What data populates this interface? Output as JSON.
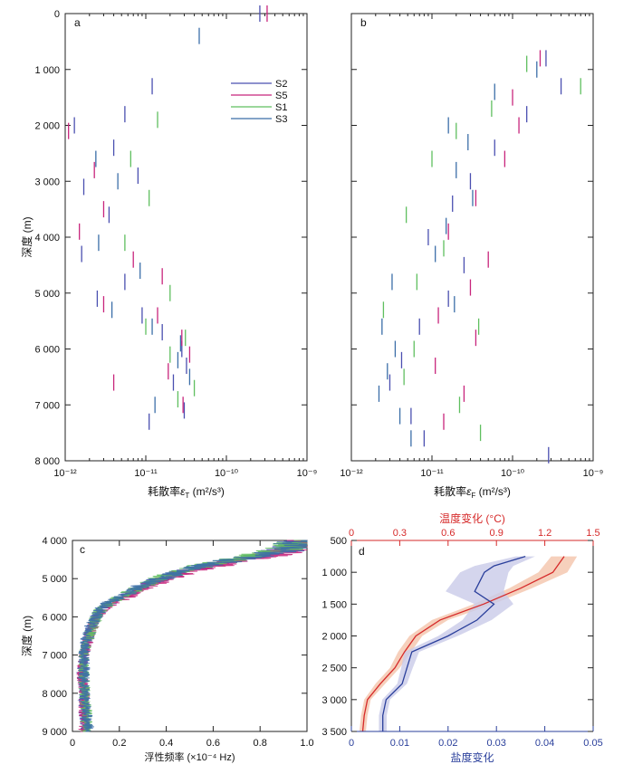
{
  "chart_data": [
    {
      "panel": "a",
      "type": "scatter",
      "xlabel_prefix": "耗散率",
      "xlabel_symbol": "ε",
      "xlabel_sub": "T",
      "xlabel_unit": " (m²/s³)",
      "ylabel": "深度 (m)",
      "xscale": "log",
      "xlim": [
        1e-12,
        1e-09
      ],
      "ylim": [
        0,
        8000
      ],
      "xticks": [
        "10⁻¹²",
        "10⁻¹¹",
        "10⁻¹⁰",
        "10⁻⁹"
      ],
      "yticks": [
        "0",
        "1 000",
        "2 000",
        "3 000",
        "4 000",
        "5 000",
        "6 000",
        "7 000",
        "8 000"
      ],
      "legend": {
        "position": "top-right",
        "entries": [
          "S2",
          "S5",
          "S1",
          "S3"
        ]
      },
      "series": [
        {
          "name": "S2",
          "color": "#4a4fb0",
          "points": [
            [
              2.6e-10,
              0
            ],
            [
              1.2e-11,
              1300
            ],
            [
              5.5e-12,
              1800
            ],
            [
              1.3e-12,
              2000
            ],
            [
              4e-12,
              2400
            ],
            [
              8e-12,
              2900
            ],
            [
              1.7e-12,
              3100
            ],
            [
              3.5e-12,
              3600
            ],
            [
              1.6e-12,
              4300
            ],
            [
              5.5e-12,
              4800
            ],
            [
              2.5e-12,
              5100
            ],
            [
              9e-12,
              5400
            ],
            [
              1.6e-11,
              5700
            ],
            [
              2.8e-11,
              6000
            ],
            [
              3.2e-11,
              6300
            ],
            [
              2.2e-11,
              6600
            ],
            [
              3e-11,
              7100
            ],
            [
              1.1e-11,
              7300
            ]
          ]
        },
        {
          "name": "S5",
          "color": "#c8257c",
          "points": [
            [
              3.2e-10,
              0
            ],
            [
              1.1e-12,
              2100
            ],
            [
              2.3e-12,
              2800
            ],
            [
              3e-12,
              3500
            ],
            [
              1.5e-12,
              3900
            ],
            [
              7e-12,
              4400
            ],
            [
              1.6e-11,
              4700
            ],
            [
              3e-12,
              5200
            ],
            [
              1.4e-11,
              5400
            ],
            [
              2.8e-11,
              5800
            ],
            [
              3.5e-11,
              6100
            ],
            [
              1.9e-11,
              6400
            ],
            [
              4e-12,
              6600
            ],
            [
              2.9e-11,
              7000
            ]
          ]
        },
        {
          "name": "S1",
          "color": "#5fbf5f",
          "points": [
            [
              1.4e-11,
              1900
            ],
            [
              6.5e-12,
              2600
            ],
            [
              1.1e-11,
              3300
            ],
            [
              5.5e-12,
              4100
            ],
            [
              2e-11,
              5000
            ],
            [
              1e-11,
              5600
            ],
            [
              3.1e-11,
              5800
            ],
            [
              2e-11,
              6100
            ],
            [
              4e-11,
              6700
            ],
            [
              2.5e-11,
              6900
            ]
          ]
        },
        {
          "name": "S3",
          "color": "#3b6ea8",
          "points": [
            [
              4.6e-11,
              400
            ],
            [
              2.4e-12,
              2600
            ],
            [
              4.5e-12,
              3000
            ],
            [
              2.6e-12,
              4100
            ],
            [
              8.5e-12,
              4600
            ],
            [
              3.8e-12,
              5300
            ],
            [
              1.2e-11,
              5600
            ],
            [
              2.7e-11,
              5900
            ],
            [
              2.5e-11,
              6200
            ],
            [
              3.5e-11,
              6500
            ],
            [
              1.3e-11,
              7000
            ]
          ]
        }
      ]
    },
    {
      "panel": "b",
      "type": "scatter",
      "xlabel_prefix": "耗散率",
      "xlabel_symbol": "ε",
      "xlabel_sub": "F",
      "xlabel_unit": " (m²/s³)",
      "xscale": "log",
      "xlim": [
        1e-12,
        1e-09
      ],
      "ylim": [
        0,
        8000
      ],
      "xticks": [
        "10⁻¹²",
        "10⁻¹¹",
        "10⁻¹⁰",
        "10⁻⁹"
      ],
      "series": [
        {
          "name": "S2",
          "color": "#4a4fb0",
          "points": [
            [
              2.6e-10,
              800
            ],
            [
              4e-10,
              1300
            ],
            [
              1.5e-10,
              1800
            ],
            [
              6e-11,
              2400
            ],
            [
              3e-11,
              3000
            ],
            [
              1.8e-11,
              3400
            ],
            [
              9e-12,
              4000
            ],
            [
              2.5e-11,
              4500
            ],
            [
              1.6e-11,
              5100
            ],
            [
              7e-12,
              5600
            ],
            [
              4.2e-12,
              6200
            ],
            [
              3e-12,
              6600
            ],
            [
              5.5e-12,
              7200
            ],
            [
              8e-12,
              7600
            ],
            [
              2.8e-10,
              7900
            ]
          ]
        },
        {
          "name": "S5",
          "color": "#c8257c",
          "points": [
            [
              2.2e-10,
              800
            ],
            [
              1e-10,
              1500
            ],
            [
              1.2e-10,
              2000
            ],
            [
              8e-11,
              2600
            ],
            [
              3.5e-11,
              3300
            ],
            [
              1.6e-11,
              3900
            ],
            [
              5e-11,
              4400
            ],
            [
              3e-11,
              4900
            ],
            [
              1.2e-11,
              5400
            ],
            [
              3.5e-11,
              5800
            ],
            [
              1.1e-11,
              6300
            ],
            [
              2.5e-11,
              6800
            ],
            [
              1.4e-11,
              7300
            ]
          ]
        },
        {
          "name": "S1",
          "color": "#5fbf5f",
          "points": [
            [
              7e-10,
              1300
            ],
            [
              1.5e-10,
              900
            ],
            [
              5.5e-11,
              1700
            ],
            [
              2e-11,
              2100
            ],
            [
              1e-11,
              2600
            ],
            [
              4.8e-12,
              3600
            ],
            [
              1.4e-11,
              4200
            ],
            [
              6.5e-12,
              4800
            ],
            [
              2.5e-12,
              5300
            ],
            [
              3.8e-11,
              5600
            ],
            [
              6e-12,
              6000
            ],
            [
              4.5e-12,
              6500
            ],
            [
              2.2e-11,
              7000
            ],
            [
              4e-11,
              7500
            ]
          ]
        },
        {
          "name": "S3",
          "color": "#3b6ea8",
          "points": [
            [
              2e-10,
              1000
            ],
            [
              6e-11,
              1400
            ],
            [
              1.6e-11,
              2000
            ],
            [
              2.8e-11,
              2300
            ],
            [
              2e-11,
              2800
            ],
            [
              3.2e-11,
              3300
            ],
            [
              1.5e-11,
              3800
            ],
            [
              1.1e-11,
              4300
            ],
            [
              3.2e-12,
              4800
            ],
            [
              1.9e-11,
              5200
            ],
            [
              2.4e-12,
              5600
            ],
            [
              3.5e-12,
              6000
            ],
            [
              2.8e-12,
              6400
            ],
            [
              2.2e-12,
              6800
            ],
            [
              4e-12,
              7200
            ],
            [
              5.5e-12,
              7600
            ]
          ]
        }
      ]
    },
    {
      "panel": "c",
      "type": "line",
      "xlabel": "浮性频率 (×10⁻⁴ Hz)",
      "ylabel": "深度 (m)",
      "xlim": [
        0,
        1.0
      ],
      "ylim": [
        4000,
        9000
      ],
      "xticks": [
        "0",
        "0.2",
        "0.4",
        "0.6",
        "0.8",
        "1.0"
      ],
      "yticks": [
        "4 000",
        "5 000",
        "6 000",
        "7 000",
        "8 000",
        "9 000"
      ],
      "series": [
        {
          "name": "S2",
          "color": "#4a4fb0",
          "profile": [
            [
              4000,
              1.0
            ],
            [
              4200,
              0.94
            ],
            [
              4400,
              0.8
            ],
            [
              4600,
              0.62
            ],
            [
              4800,
              0.48
            ],
            [
              5000,
              0.38
            ],
            [
              5200,
              0.3
            ],
            [
              5400,
              0.24
            ],
            [
              5600,
              0.17
            ],
            [
              5800,
              0.12
            ],
            [
              6000,
              0.1
            ],
            [
              6200,
              0.09
            ],
            [
              6500,
              0.07
            ],
            [
              7000,
              0.05
            ],
            [
              7500,
              0.04
            ],
            [
              8000,
              0.05
            ],
            [
              8500,
              0.05
            ],
            [
              9000,
              0.06
            ]
          ]
        },
        {
          "name": "S5",
          "color": "#c8257c",
          "profile": [
            [
              4000,
              1.0
            ],
            [
              4200,
              0.96
            ],
            [
              4400,
              0.83
            ],
            [
              4600,
              0.66
            ],
            [
              4800,
              0.5
            ],
            [
              5000,
              0.4
            ],
            [
              5200,
              0.32
            ],
            [
              5400,
              0.26
            ],
            [
              5600,
              0.19
            ],
            [
              5800,
              0.13
            ],
            [
              6000,
              0.11
            ],
            [
              6200,
              0.09
            ],
            [
              6500,
              0.07
            ],
            [
              7000,
              0.05
            ],
            [
              7500,
              0.04
            ],
            [
              8000,
              0.05
            ],
            [
              8500,
              0.05
            ],
            [
              9000,
              0.05
            ]
          ]
        },
        {
          "name": "S1",
          "color": "#5fbf5f",
          "profile": [
            [
              4000,
              0.98
            ],
            [
              4200,
              0.92
            ],
            [
              4400,
              0.78
            ],
            [
              4600,
              0.6
            ],
            [
              4800,
              0.46
            ],
            [
              5000,
              0.37
            ],
            [
              5200,
              0.3
            ],
            [
              5400,
              0.23
            ],
            [
              5600,
              0.17
            ],
            [
              5800,
              0.12
            ],
            [
              6000,
              0.1
            ],
            [
              6200,
              0.09
            ],
            [
              6500,
              0.07
            ],
            [
              7000,
              0.05
            ],
            [
              7500,
              0.05
            ],
            [
              8000,
              0.05
            ],
            [
              8500,
              0.06
            ],
            [
              9000,
              0.06
            ]
          ]
        },
        {
          "name": "S3",
          "color": "#3b6ea8",
          "profile": [
            [
              4000,
              0.99
            ],
            [
              4200,
              0.93
            ],
            [
              4400,
              0.79
            ],
            [
              4600,
              0.61
            ],
            [
              4800,
              0.47
            ],
            [
              5000,
              0.38
            ],
            [
              5200,
              0.29
            ],
            [
              5400,
              0.23
            ],
            [
              5600,
              0.16
            ],
            [
              5800,
              0.12
            ],
            [
              6000,
              0.1
            ],
            [
              6200,
              0.08
            ],
            [
              6500,
              0.06
            ],
            [
              7000,
              0.05
            ],
            [
              7500,
              0.05
            ],
            [
              8000,
              0.05
            ],
            [
              8500,
              0.06
            ],
            [
              9000,
              0.07
            ]
          ]
        }
      ]
    },
    {
      "panel": "d",
      "type": "line",
      "xlabel_top": "温度变化 (°C)",
      "xlabel_bottom": "盐度变化",
      "ylabel": "",
      "xlim_top": [
        0,
        1.5
      ],
      "xlim_bottom": [
        0,
        0.05
      ],
      "ylim": [
        500,
        3500
      ],
      "xticks_top": [
        "0",
        "0.3",
        "0.6",
        "0.9",
        "1.2",
        "1.5"
      ],
      "xticks_bottom": [
        "0",
        "0.01",
        "0.02",
        "0.03",
        "0.04",
        "0.05"
      ],
      "yticks": [
        "500",
        "1 000",
        "1 500",
        "2 000",
        "2 500",
        "3 000",
        "3 500"
      ],
      "colors": {
        "temperature": "#d62a2a",
        "salinity": "#2a3f9b",
        "temp_band": "#f5c8b0",
        "sal_band": "#c9cbe8"
      },
      "temperature": [
        [
          750,
          1.32
        ],
        [
          1000,
          1.25
        ],
        [
          1250,
          1.05
        ],
        [
          1500,
          0.82
        ],
        [
          1750,
          0.55
        ],
        [
          2000,
          0.4
        ],
        [
          2250,
          0.33
        ],
        [
          2500,
          0.27
        ],
        [
          2750,
          0.18
        ],
        [
          3000,
          0.1
        ],
        [
          3250,
          0.08
        ],
        [
          3500,
          0.07
        ]
      ],
      "temperature_band": [
        [
          750,
          0.08
        ],
        [
          1000,
          0.09
        ],
        [
          1250,
          0.07
        ],
        [
          1500,
          0.06
        ],
        [
          1750,
          0.05
        ],
        [
          2000,
          0.04
        ],
        [
          2250,
          0.04
        ],
        [
          2500,
          0.03
        ],
        [
          2750,
          0.03
        ],
        [
          3000,
          0.02
        ],
        [
          3250,
          0.02
        ],
        [
          3500,
          0.02
        ]
      ],
      "salinity": [
        [
          750,
          0.036
        ],
        [
          900,
          0.0295
        ],
        [
          1000,
          0.0275
        ],
        [
          1300,
          0.0255
        ],
        [
          1500,
          0.0295
        ],
        [
          1750,
          0.026
        ],
        [
          2000,
          0.02
        ],
        [
          2250,
          0.0125
        ],
        [
          2500,
          0.0115
        ],
        [
          2750,
          0.0105
        ],
        [
          3000,
          0.0072
        ],
        [
          3250,
          0.0065
        ],
        [
          3500,
          0.0065
        ]
      ],
      "salinity_band": [
        [
          750,
          0.002
        ],
        [
          900,
          0.004
        ],
        [
          1000,
          0.005
        ],
        [
          1300,
          0.006
        ],
        [
          1500,
          0.004
        ],
        [
          1750,
          0.003
        ],
        [
          2000,
          0.002
        ],
        [
          2250,
          0.0015
        ],
        [
          2500,
          0.0012
        ],
        [
          2750,
          0.001
        ],
        [
          3000,
          0.0008
        ],
        [
          3250,
          0.0008
        ],
        [
          3500,
          0.0008
        ]
      ]
    }
  ]
}
